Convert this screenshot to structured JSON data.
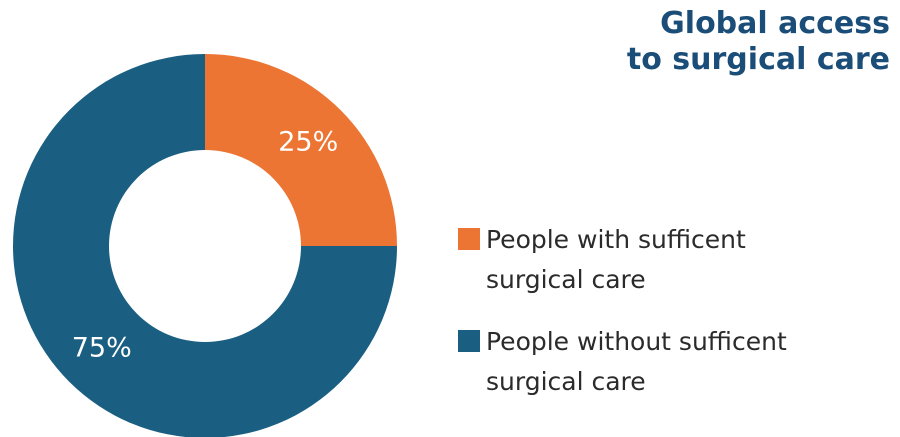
{
  "chart_data": {
    "type": "pie",
    "style": "donut",
    "title": [
      "Global access",
      "to surgical care"
    ],
    "slices": [
      {
        "label": [
          "People with sufficent",
          "surgical care"
        ],
        "value": 25,
        "value_label": "25%",
        "color": "#ec7534"
      },
      {
        "label": [
          "People without sufficent",
          "surgical care"
        ],
        "value": 75,
        "value_label": "75%",
        "color": "#1a5f82"
      }
    ],
    "legend_position": "right"
  }
}
